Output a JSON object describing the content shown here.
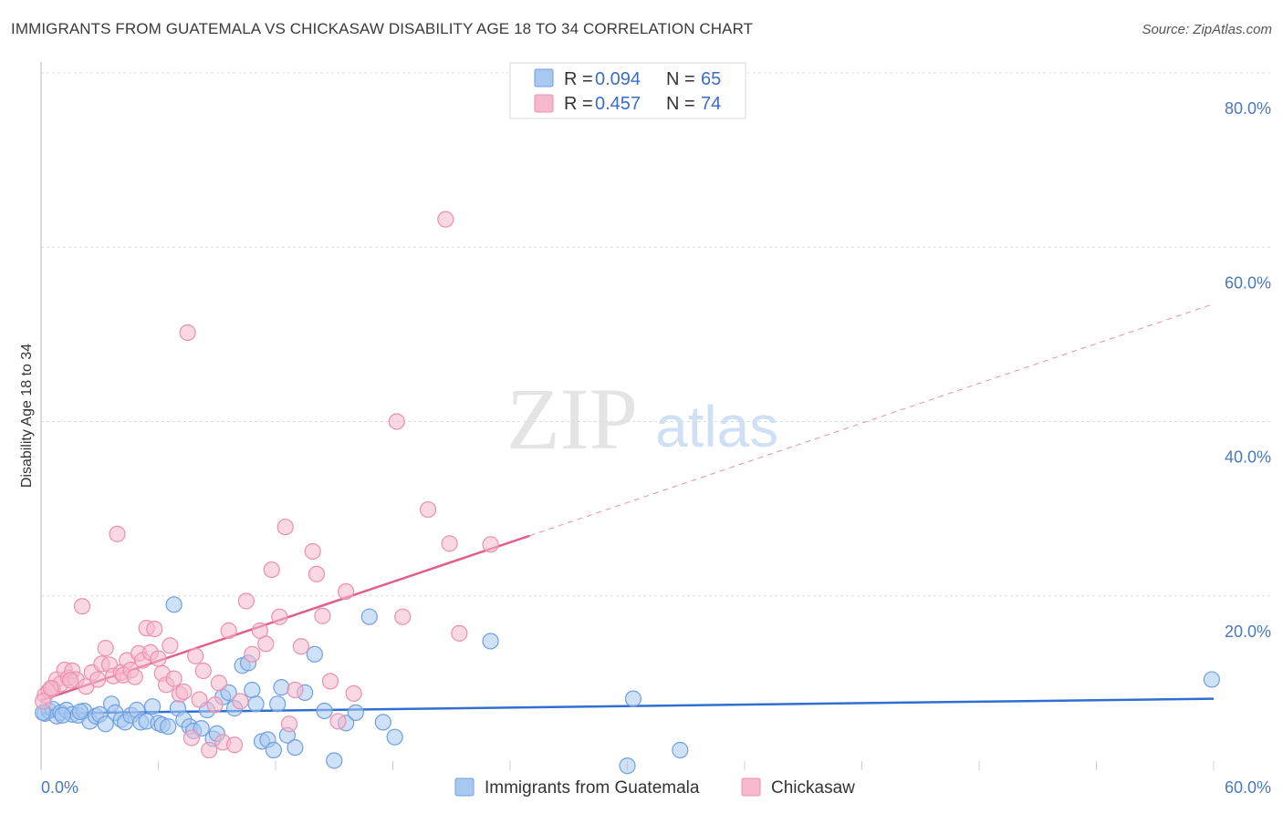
{
  "header": {
    "title": "IMMIGRANTS FROM GUATEMALA VS CHICKASAW DISABILITY AGE 18 TO 34 CORRELATION CHART",
    "source": "Source: ZipAtlas.com"
  },
  "watermark": {
    "zip": "ZIP",
    "atlas": "atlas"
  },
  "colors": {
    "blue_fill": "#a8c8f0",
    "blue_stroke": "#6f9fe0",
    "blue_line": "#2f6fd0",
    "pink_fill": "#f5b8cc",
    "pink_stroke": "#ea8fb0",
    "pink_line": "#e0608c",
    "grid": "#dddddd",
    "tick_text": "#4a78c0"
  },
  "legend": {
    "r_label": "R =",
    "n_label": "N =",
    "entries": [
      {
        "r": "0.094",
        "n": "65"
      },
      {
        "r": "0.457",
        "n": "74"
      }
    ]
  },
  "chart_data": {
    "type": "scatter",
    "title": "IMMIGRANTS FROM GUATEMALA VS CHICKASAW DISABILITY AGE 18 TO 34 CORRELATION CHART",
    "xlabel": "",
    "ylabel": "Disability Age 18 to 34",
    "xlim": [
      0,
      60
    ],
    "ylim": [
      0,
      80
    ],
    "x_tick_labels": [
      "0.0%",
      "60.0%"
    ],
    "y_ticks": [
      {
        "value": 20,
        "label": "20.0%"
      },
      {
        "value": 40,
        "label": "40.0%"
      },
      {
        "value": 60,
        "label": "60.0%"
      },
      {
        "value": 80,
        "label": "80.0%"
      }
    ],
    "grid": true,
    "series": [
      {
        "name": "Immigrants from Guatemala",
        "r": 0.094,
        "n": 65,
        "trend": {
          "x0": 0,
          "y0": 6.5,
          "x1": 60,
          "y1": 8.2
        },
        "points": [
          [
            0.2,
            6.5
          ],
          [
            0.4,
            6.8
          ],
          [
            0.6,
            7.0
          ],
          [
            0.8,
            6.2
          ],
          [
            1.0,
            6.6
          ],
          [
            1.3,
            6.9
          ],
          [
            1.6,
            6.4
          ],
          [
            1.9,
            6.3
          ],
          [
            2.2,
            6.8
          ],
          [
            2.5,
            5.6
          ],
          [
            2.8,
            6.2
          ],
          [
            3.0,
            6.4
          ],
          [
            3.3,
            5.3
          ],
          [
            3.6,
            7.6
          ],
          [
            3.8,
            6.6
          ],
          [
            4.1,
            5.8
          ],
          [
            4.3,
            5.5
          ],
          [
            4.6,
            6.3
          ],
          [
            4.9,
            6.9
          ],
          [
            5.1,
            5.5
          ],
          [
            5.4,
            5.6
          ],
          [
            5.7,
            7.3
          ],
          [
            6.0,
            5.4
          ],
          [
            6.2,
            5.2
          ],
          [
            6.5,
            5.0
          ],
          [
            6.8,
            19.0
          ],
          [
            7.0,
            7.1
          ],
          [
            7.3,
            5.8
          ],
          [
            7.6,
            5.0
          ],
          [
            7.8,
            4.5
          ],
          [
            8.2,
            4.8
          ],
          [
            8.5,
            6.9
          ],
          [
            8.8,
            3.6
          ],
          [
            9.0,
            4.2
          ],
          [
            9.3,
            8.4
          ],
          [
            9.6,
            8.9
          ],
          [
            9.9,
            7.1
          ],
          [
            10.3,
            12.0
          ],
          [
            10.6,
            12.3
          ],
          [
            10.8,
            9.2
          ],
          [
            11.0,
            7.6
          ],
          [
            11.3,
            3.3
          ],
          [
            11.6,
            3.5
          ],
          [
            11.9,
            2.3
          ],
          [
            12.1,
            7.6
          ],
          [
            12.3,
            9.5
          ],
          [
            12.6,
            4.0
          ],
          [
            13.0,
            2.6
          ],
          [
            13.5,
            8.9
          ],
          [
            14.0,
            13.3
          ],
          [
            14.5,
            6.8
          ],
          [
            15.0,
            1.1
          ],
          [
            15.6,
            5.4
          ],
          [
            16.1,
            6.6
          ],
          [
            16.8,
            17.6
          ],
          [
            17.5,
            5.5
          ],
          [
            18.1,
            3.8
          ],
          [
            23.0,
            14.8
          ],
          [
            30.0,
            0.5
          ],
          [
            30.3,
            8.2
          ],
          [
            32.7,
            2.3
          ],
          [
            59.9,
            10.4
          ],
          [
            0.1,
            6.6
          ],
          [
            1.1,
            6.3
          ],
          [
            2.0,
            6.7
          ]
        ]
      },
      {
        "name": "Chickasaw",
        "r": 0.457,
        "n": 74,
        "trend": {
          "x0": 0,
          "y0": 8.0,
          "x1": 25.0,
          "y1": 26.9,
          "x_ext": 60,
          "y_ext": 53.5
        },
        "points": [
          [
            0.2,
            8.6
          ],
          [
            0.4,
            9.1
          ],
          [
            0.6,
            9.4
          ],
          [
            0.8,
            10.4
          ],
          [
            1.0,
            9.9
          ],
          [
            1.2,
            11.5
          ],
          [
            1.4,
            10.6
          ],
          [
            1.6,
            11.4
          ],
          [
            1.8,
            10.4
          ],
          [
            2.1,
            18.8
          ],
          [
            2.3,
            9.6
          ],
          [
            2.6,
            11.2
          ],
          [
            2.9,
            10.4
          ],
          [
            3.1,
            12.2
          ],
          [
            3.3,
            14.0
          ],
          [
            3.5,
            12.1
          ],
          [
            3.7,
            10.8
          ],
          [
            3.9,
            27.1
          ],
          [
            4.1,
            11.2
          ],
          [
            4.2,
            10.9
          ],
          [
            4.4,
            12.6
          ],
          [
            4.6,
            11.5
          ],
          [
            4.8,
            10.7
          ],
          [
            5.0,
            13.4
          ],
          [
            5.2,
            12.6
          ],
          [
            5.4,
            16.3
          ],
          [
            5.6,
            13.5
          ],
          [
            5.8,
            16.2
          ],
          [
            6.0,
            12.8
          ],
          [
            6.2,
            11.1
          ],
          [
            6.4,
            9.8
          ],
          [
            6.6,
            14.3
          ],
          [
            6.8,
            10.5
          ],
          [
            7.1,
            8.7
          ],
          [
            7.3,
            9.0
          ],
          [
            7.5,
            50.2
          ],
          [
            7.7,
            3.7
          ],
          [
            7.9,
            13.1
          ],
          [
            8.1,
            8.1
          ],
          [
            8.3,
            11.4
          ],
          [
            8.6,
            2.3
          ],
          [
            8.9,
            7.5
          ],
          [
            9.1,
            10.0
          ],
          [
            9.3,
            3.2
          ],
          [
            9.6,
            16.0
          ],
          [
            9.9,
            2.9
          ],
          [
            10.2,
            7.9
          ],
          [
            10.5,
            19.4
          ],
          [
            10.8,
            13.3
          ],
          [
            11.2,
            16.0
          ],
          [
            11.5,
            14.5
          ],
          [
            11.8,
            23.0
          ],
          [
            12.2,
            17.6
          ],
          [
            12.5,
            27.9
          ],
          [
            12.7,
            5.3
          ],
          [
            13.0,
            9.2
          ],
          [
            13.3,
            14.2
          ],
          [
            13.9,
            25.1
          ],
          [
            14.1,
            22.5
          ],
          [
            14.4,
            17.7
          ],
          [
            14.8,
            10.2
          ],
          [
            15.2,
            5.6
          ],
          [
            15.6,
            20.5
          ],
          [
            16.0,
            8.8
          ],
          [
            18.2,
            40.0
          ],
          [
            18.5,
            17.6
          ],
          [
            19.8,
            29.9
          ],
          [
            20.7,
            63.2
          ],
          [
            20.9,
            26.0
          ],
          [
            21.4,
            15.7
          ],
          [
            23.0,
            25.9
          ],
          [
            0.1,
            7.9
          ],
          [
            0.5,
            9.4
          ],
          [
            1.5,
            10.3
          ]
        ]
      }
    ]
  }
}
